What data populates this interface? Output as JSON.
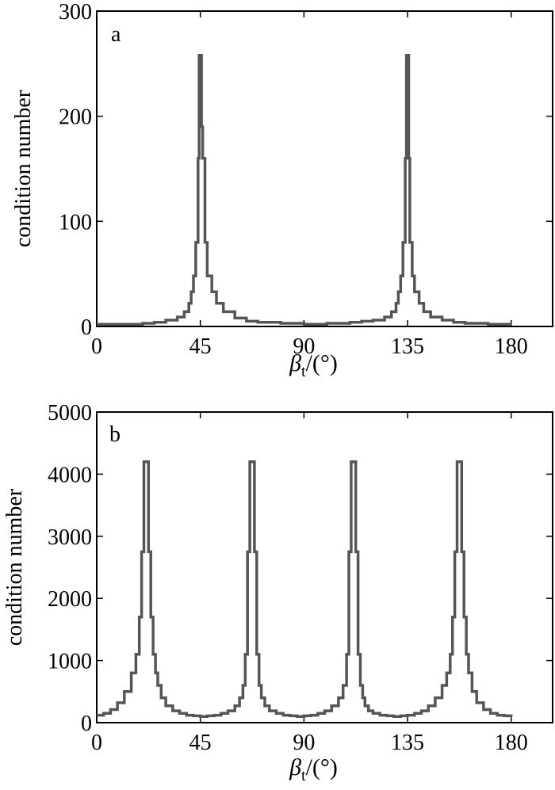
{
  "chart_data": [
    {
      "type": "line",
      "panel_label": "a",
      "xlabel": {
        "symbol": "β",
        "subscript": "t",
        "unit": "/(°)"
      },
      "ylabel": "condition number",
      "xlim": [
        0,
        198
      ],
      "ylim": [
        0,
        300
      ],
      "xticks": [
        0,
        45,
        90,
        135,
        180
      ],
      "yticks": [
        0,
        100,
        200,
        300
      ],
      "grid": false,
      "line_color": "#555555",
      "series": [
        {
          "x": [
            0,
            10,
            20,
            25,
            30,
            35,
            38,
            40,
            41,
            42,
            43,
            44,
            44.5,
            45,
            45.5,
            46,
            47,
            48,
            50,
            52,
            55,
            60,
            65,
            70,
            80,
            90,
            100,
            110,
            115,
            120,
            125,
            128,
            130,
            131,
            132,
            133,
            134,
            134.5,
            135,
            135.5,
            136,
            137,
            138,
            140,
            142,
            145,
            150,
            155,
            160,
            170,
            180
          ],
          "y": [
            2,
            2,
            3,
            4,
            6,
            9,
            14,
            22,
            33,
            48,
            80,
            160,
            258,
            258,
            190,
            160,
            80,
            48,
            33,
            22,
            14,
            8,
            5,
            4,
            3,
            2,
            3,
            4,
            5,
            6,
            9,
            14,
            22,
            33,
            48,
            80,
            160,
            258,
            258,
            160,
            80,
            48,
            33,
            22,
            14,
            9,
            6,
            4,
            3,
            2,
            2
          ]
        }
      ]
    },
    {
      "type": "line",
      "panel_label": "b",
      "xlabel": {
        "symbol": "β",
        "subscript": "t",
        "unit": "/(°)"
      },
      "ylabel": "condition number",
      "xlim": [
        0,
        198
      ],
      "ylim": [
        0,
        5000
      ],
      "xticks": [
        0,
        45,
        90,
        135,
        180
      ],
      "yticks": [
        0,
        1000,
        2000,
        3000,
        4000,
        5000
      ],
      "grid": false,
      "line_color": "#555555",
      "series": [
        {
          "x": [
            0,
            3,
            6,
            9,
            12,
            15,
            17,
            18.5,
            19.5,
            20.5,
            21.5,
            22.5,
            23.5,
            24.5,
            25.5,
            26.5,
            28,
            30,
            33,
            36,
            39,
            42,
            45,
            48,
            51,
            54,
            57,
            60,
            62,
            63.5,
            64.5,
            65.5,
            66.5,
            67.5,
            68.5,
            69.5,
            70.5,
            71.5,
            73,
            75,
            78,
            81,
            84,
            87,
            90,
            93,
            96,
            99,
            102,
            105,
            107,
            108.5,
            109.5,
            110.5,
            111.5,
            112.5,
            113.5,
            114.5,
            115.5,
            116.5,
            118,
            120,
            123,
            126,
            129,
            132,
            135,
            138,
            141,
            144,
            147,
            150,
            152,
            153.5,
            154.5,
            155.5,
            156.5,
            157.5,
            158.5,
            159.5,
            160.5,
            161.5,
            163,
            165,
            168,
            171,
            174,
            177,
            180
          ],
          "y": [
            120,
            150,
            210,
            320,
            500,
            800,
            1100,
            1700,
            2750,
            4200,
            4200,
            2750,
            1700,
            1100,
            800,
            600,
            400,
            270,
            190,
            150,
            120,
            110,
            100,
            110,
            120,
            150,
            190,
            270,
            400,
            600,
            1100,
            2750,
            4200,
            4200,
            2750,
            1100,
            600,
            400,
            270,
            190,
            150,
            120,
            110,
            100,
            110,
            120,
            150,
            190,
            270,
            400,
            600,
            1100,
            2750,
            4200,
            4200,
            2750,
            1100,
            600,
            400,
            270,
            190,
            150,
            120,
            110,
            100,
            110,
            120,
            150,
            190,
            270,
            400,
            600,
            800,
            1100,
            1700,
            2750,
            4200,
            4200,
            2750,
            1700,
            1100,
            800,
            500,
            320,
            210,
            150,
            120,
            110,
            100
          ]
        }
      ]
    }
  ]
}
